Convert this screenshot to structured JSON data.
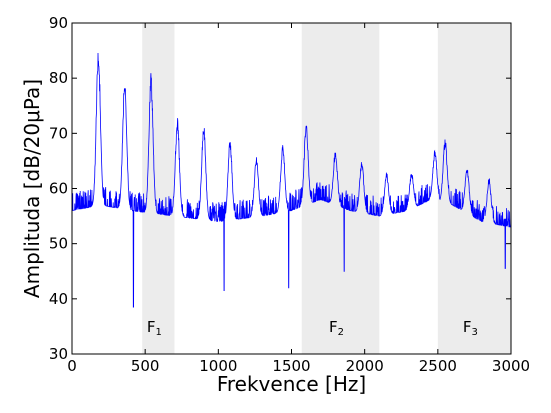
{
  "chart_data": {
    "type": "line",
    "title": "",
    "xlabel": "Frekvence [Hz]",
    "ylabel": "Amplituda [dB/20μPa]",
    "xlim": [
      0,
      3000
    ],
    "ylim": [
      30,
      90
    ],
    "x_ticks": [
      0,
      500,
      1000,
      1500,
      2000,
      2500,
      3000
    ],
    "y_ticks": [
      30,
      40,
      50,
      60,
      70,
      80,
      90
    ],
    "grid": false,
    "legend": "none",
    "colors": {
      "line": "#0000ff",
      "band": "#ececec"
    },
    "shaded_bands": [
      {
        "label": "F",
        "sub": "1",
        "x_start": 480,
        "x_end": 700
      },
      {
        "label": "F",
        "sub": "2",
        "x_start": 1570,
        "x_end": 2100
      },
      {
        "label": "F",
        "sub": "3",
        "x_start": 2500,
        "x_end": 3000
      }
    ],
    "series": [
      {
        "color": "#0000ff",
        "baseline": [
          [
            0,
            56
          ],
          [
            200,
            57
          ],
          [
            400,
            56
          ],
          [
            700,
            55
          ],
          [
            1000,
            54
          ],
          [
            1300,
            55
          ],
          [
            1500,
            56
          ],
          [
            1700,
            58
          ],
          [
            1900,
            56
          ],
          [
            2100,
            55
          ],
          [
            2300,
            56
          ],
          [
            2450,
            58
          ],
          [
            2600,
            57
          ],
          [
            2800,
            54
          ],
          [
            3000,
            53
          ]
        ],
        "peaks": [
          [
            180,
            86
          ],
          [
            360,
            80
          ],
          [
            540,
            81
          ],
          [
            720,
            73
          ],
          [
            900,
            72
          ],
          [
            1080,
            69
          ],
          [
            1260,
            66
          ],
          [
            1440,
            68
          ],
          [
            1600,
            72
          ],
          [
            1800,
            67
          ],
          [
            1980,
            65
          ],
          [
            2150,
            63
          ],
          [
            2320,
            63
          ],
          [
            2480,
            67
          ],
          [
            2550,
            69
          ],
          [
            2700,
            64
          ],
          [
            2850,
            62
          ]
        ],
        "dips": [
          [
            420,
            38.5
          ],
          [
            1040,
            41.5
          ],
          [
            1480,
            42
          ],
          [
            1860,
            45
          ],
          [
            2960,
            45.5
          ]
        ]
      }
    ]
  }
}
